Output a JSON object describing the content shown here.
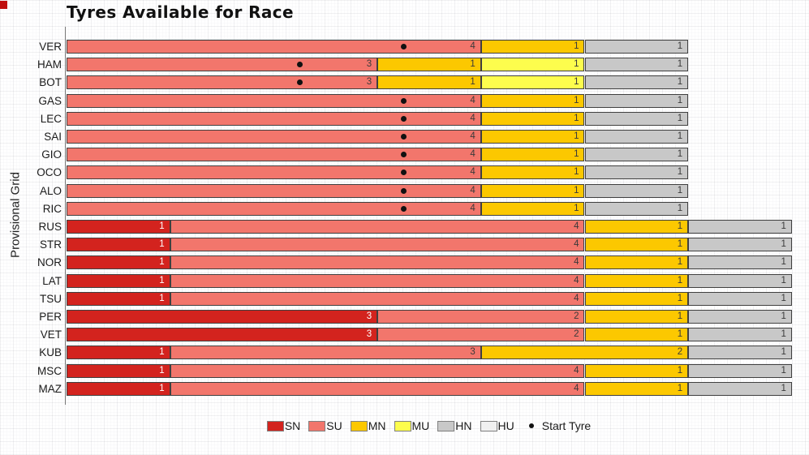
{
  "title": "Tyres Available for Race",
  "y_axis_label": "Provisional Grid",
  "legend": {
    "items": [
      {
        "code": "SN",
        "color": "#d3231e"
      },
      {
        "code": "SU",
        "color": "#f2766c"
      },
      {
        "code": "MN",
        "color": "#fcc800"
      },
      {
        "code": "MU",
        "color": "#fdfd4d"
      },
      {
        "code": "HN",
        "color": "#c8c8c8"
      },
      {
        "code": "HU",
        "color": "#f0f0f0"
      }
    ],
    "start_tyre_label": "Start Tyre"
  },
  "colors": {
    "segment_border": "#404040",
    "start_dot": "#111111"
  },
  "chart_data": {
    "type": "bar",
    "orientation": "horizontal-stacked",
    "x_range": [
      0,
      7
    ],
    "grid": true,
    "legend_position": "bottom-center",
    "categories": [
      "VER",
      "HAM",
      "BOT",
      "GAS",
      "LEC",
      "SAI",
      "GIO",
      "OCO",
      "ALO",
      "RIC",
      "RUS",
      "STR",
      "NOR",
      "LAT",
      "TSU",
      "PER",
      "VET",
      "KUB",
      "MSC",
      "MAZ"
    ],
    "rows": [
      {
        "driver": "VER",
        "start_tyre": "SU",
        "segments": [
          {
            "tyre": "SU",
            "count": 4
          },
          {
            "tyre": "MN",
            "count": 1
          },
          {
            "tyre": "HN",
            "count": 1
          }
        ]
      },
      {
        "driver": "HAM",
        "start_tyre": "SU",
        "segments": [
          {
            "tyre": "SU",
            "count": 3
          },
          {
            "tyre": "MN",
            "count": 1
          },
          {
            "tyre": "MU",
            "count": 1
          },
          {
            "tyre": "HN",
            "count": 1
          }
        ]
      },
      {
        "driver": "BOT",
        "start_tyre": "SU",
        "segments": [
          {
            "tyre": "SU",
            "count": 3
          },
          {
            "tyre": "MN",
            "count": 1
          },
          {
            "tyre": "MU",
            "count": 1
          },
          {
            "tyre": "HN",
            "count": 1
          }
        ]
      },
      {
        "driver": "GAS",
        "start_tyre": "SU",
        "segments": [
          {
            "tyre": "SU",
            "count": 4
          },
          {
            "tyre": "MN",
            "count": 1
          },
          {
            "tyre": "HN",
            "count": 1
          }
        ]
      },
      {
        "driver": "LEC",
        "start_tyre": "SU",
        "segments": [
          {
            "tyre": "SU",
            "count": 4
          },
          {
            "tyre": "MN",
            "count": 1
          },
          {
            "tyre": "HN",
            "count": 1
          }
        ]
      },
      {
        "driver": "SAI",
        "start_tyre": "SU",
        "segments": [
          {
            "tyre": "SU",
            "count": 4
          },
          {
            "tyre": "MN",
            "count": 1
          },
          {
            "tyre": "HN",
            "count": 1
          }
        ]
      },
      {
        "driver": "GIO",
        "start_tyre": "SU",
        "segments": [
          {
            "tyre": "SU",
            "count": 4
          },
          {
            "tyre": "MN",
            "count": 1
          },
          {
            "tyre": "HN",
            "count": 1
          }
        ]
      },
      {
        "driver": "OCO",
        "start_tyre": "SU",
        "segments": [
          {
            "tyre": "SU",
            "count": 4
          },
          {
            "tyre": "MN",
            "count": 1
          },
          {
            "tyre": "HN",
            "count": 1
          }
        ]
      },
      {
        "driver": "ALO",
        "start_tyre": "SU",
        "segments": [
          {
            "tyre": "SU",
            "count": 4
          },
          {
            "tyre": "MN",
            "count": 1
          },
          {
            "tyre": "HN",
            "count": 1
          }
        ]
      },
      {
        "driver": "RIC",
        "start_tyre": "SU",
        "segments": [
          {
            "tyre": "SU",
            "count": 4
          },
          {
            "tyre": "MN",
            "count": 1
          },
          {
            "tyre": "HN",
            "count": 1
          }
        ]
      },
      {
        "driver": "RUS",
        "start_tyre": null,
        "segments": [
          {
            "tyre": "SN",
            "count": 1
          },
          {
            "tyre": "SU",
            "count": 4
          },
          {
            "tyre": "MN",
            "count": 1
          },
          {
            "tyre": "HN",
            "count": 1
          }
        ]
      },
      {
        "driver": "STR",
        "start_tyre": null,
        "segments": [
          {
            "tyre": "SN",
            "count": 1
          },
          {
            "tyre": "SU",
            "count": 4
          },
          {
            "tyre": "MN",
            "count": 1
          },
          {
            "tyre": "HN",
            "count": 1
          }
        ]
      },
      {
        "driver": "NOR",
        "start_tyre": null,
        "segments": [
          {
            "tyre": "SN",
            "count": 1
          },
          {
            "tyre": "SU",
            "count": 4
          },
          {
            "tyre": "MN",
            "count": 1
          },
          {
            "tyre": "HN",
            "count": 1
          }
        ]
      },
      {
        "driver": "LAT",
        "start_tyre": null,
        "segments": [
          {
            "tyre": "SN",
            "count": 1
          },
          {
            "tyre": "SU",
            "count": 4
          },
          {
            "tyre": "MN",
            "count": 1
          },
          {
            "tyre": "HN",
            "count": 1
          }
        ]
      },
      {
        "driver": "TSU",
        "start_tyre": null,
        "segments": [
          {
            "tyre": "SN",
            "count": 1
          },
          {
            "tyre": "SU",
            "count": 4
          },
          {
            "tyre": "MN",
            "count": 1
          },
          {
            "tyre": "HN",
            "count": 1
          }
        ]
      },
      {
        "driver": "PER",
        "start_tyre": null,
        "segments": [
          {
            "tyre": "SN",
            "count": 3
          },
          {
            "tyre": "SU",
            "count": 2
          },
          {
            "tyre": "MN",
            "count": 1
          },
          {
            "tyre": "HN",
            "count": 1
          }
        ]
      },
      {
        "driver": "VET",
        "start_tyre": null,
        "segments": [
          {
            "tyre": "SN",
            "count": 3
          },
          {
            "tyre": "SU",
            "count": 2
          },
          {
            "tyre": "MN",
            "count": 1
          },
          {
            "tyre": "HN",
            "count": 1
          }
        ]
      },
      {
        "driver": "KUB",
        "start_tyre": null,
        "segments": [
          {
            "tyre": "SN",
            "count": 1
          },
          {
            "tyre": "SU",
            "count": 3
          },
          {
            "tyre": "MN",
            "count": 2
          },
          {
            "tyre": "HN",
            "count": 1
          }
        ]
      },
      {
        "driver": "MSC",
        "start_tyre": null,
        "segments": [
          {
            "tyre": "SN",
            "count": 1
          },
          {
            "tyre": "SU",
            "count": 4
          },
          {
            "tyre": "MN",
            "count": 1
          },
          {
            "tyre": "HN",
            "count": 1
          }
        ]
      },
      {
        "driver": "MAZ",
        "start_tyre": null,
        "segments": [
          {
            "tyre": "SN",
            "count": 1
          },
          {
            "tyre": "SU",
            "count": 4
          },
          {
            "tyre": "MN",
            "count": 1
          },
          {
            "tyre": "HN",
            "count": 1
          }
        ]
      }
    ],
    "start_dot_offset_units_from_segment_end": 0.75
  }
}
